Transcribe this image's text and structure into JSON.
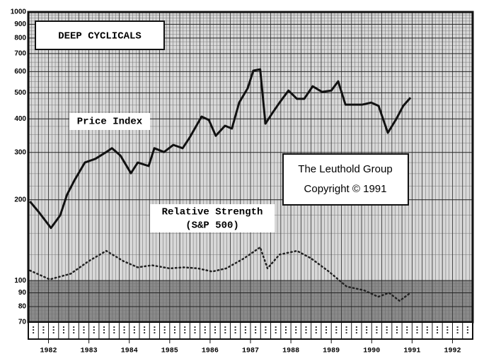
{
  "chart_data": {
    "type": "line",
    "title": "DEEP CYCLICALS",
    "annotations": [
      "The Leuthold Group",
      "Copyright © 1991",
      "(S&P 500)"
    ],
    "xlim": [
      1982,
      1993
    ],
    "xticks": [
      {
        "value": 1982.5,
        "label": "1982"
      },
      {
        "value": 1983.5,
        "label": "1983"
      },
      {
        "value": 1984.5,
        "label": "1984"
      },
      {
        "value": 1985.5,
        "label": "1985"
      },
      {
        "value": 1986.5,
        "label": "1986"
      },
      {
        "value": 1987.5,
        "label": "1987"
      },
      {
        "value": 1988.5,
        "label": "1988"
      },
      {
        "value": 1989.5,
        "label": "1989"
      },
      {
        "value": 1990.5,
        "label": "1990"
      },
      {
        "value": 1991.5,
        "label": "1991"
      },
      {
        "value": 1992.5,
        "label": "1992"
      }
    ],
    "ylim": [
      70,
      1000
    ],
    "yticks": [
      70,
      80,
      90,
      100,
      200,
      300,
      400,
      500,
      600,
      700,
      800,
      900,
      1000
    ],
    "log_scale": true,
    "grid": true,
    "series": [
      {
        "name": "Price Index",
        "color": "#111111",
        "style": "solid",
        "x": [
          1982.04,
          1982.26,
          1982.56,
          1982.79,
          1982.96,
          1983.14,
          1983.4,
          1983.66,
          1983.93,
          1984.07,
          1984.28,
          1984.54,
          1984.71,
          1984.98,
          1985.12,
          1985.36,
          1985.59,
          1985.82,
          1985.99,
          1986.29,
          1986.47,
          1986.64,
          1986.87,
          1987.04,
          1987.22,
          1987.43,
          1987.57,
          1987.74,
          1987.87,
          1988.04,
          1988.22,
          1988.44,
          1988.65,
          1988.83,
          1989.04,
          1989.27,
          1989.5,
          1989.67,
          1989.85,
          1990.06,
          1990.27,
          1990.49,
          1990.67,
          1990.9,
          1991.11,
          1991.28,
          1991.46
        ],
        "values": [
          197,
          180,
          157,
          175,
          209,
          236,
          275,
          284,
          301,
          311,
          292,
          251,
          275,
          267,
          311,
          301,
          320,
          311,
          340,
          408,
          396,
          346,
          377,
          368,
          460,
          520,
          605,
          612,
          384,
          420,
          460,
          510,
          475,
          475,
          529,
          504,
          510,
          552,
          452,
          452,
          452,
          460,
          447,
          355,
          400,
          447,
          480
        ]
      },
      {
        "name": "Relative Strength",
        "color": "#222222",
        "style": "dotted",
        "x": [
          1982.04,
          1982.53,
          1983.05,
          1983.49,
          1983.93,
          1984.36,
          1984.71,
          1985.06,
          1985.5,
          1985.85,
          1986.2,
          1986.55,
          1986.9,
          1987.34,
          1987.74,
          1987.92,
          1988.22,
          1988.65,
          1989.0,
          1989.44,
          1989.88,
          1990.31,
          1990.66,
          1990.93,
          1991.19,
          1991.46
        ],
        "values": [
          109,
          101,
          106,
          118,
          129,
          118,
          112,
          114,
          111,
          112,
          111,
          108,
          111,
          121,
          133,
          111,
          125,
          129,
          121,
          108,
          95,
          92,
          87,
          90,
          84,
          90
        ]
      }
    ]
  }
}
